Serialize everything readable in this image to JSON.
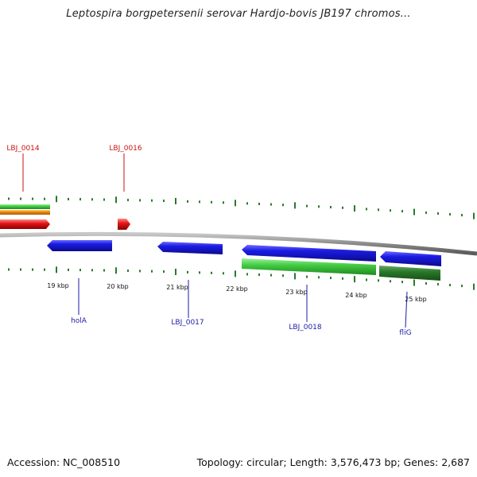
{
  "title": "Leptospira borgpetersenii serovar Hardjo-bovis JB197 chromos...",
  "footer": {
    "accession": "Accession: NC_008510",
    "summary": "Topology: circular; Length: 3,576,473 bp; Genes: 2,687"
  },
  "colors": {
    "label_red": "#c81414",
    "label_blue": "#1a1aa8",
    "tick_green": "#2a7a2a",
    "backbone": "#8a8a8a",
    "blue": "#1a1ad8",
    "green": "#44cc44",
    "dark_green": "#2b7a2b",
    "orange": "#f08c14",
    "red": "#e61818"
  },
  "axis": {
    "kbp_labels": [
      "19 kbp",
      "20 kbp",
      "21 kbp",
      "22 kbp",
      "23 kbp",
      "24 kbp",
      "25 kbp"
    ]
  },
  "gene_labels": {
    "top": [
      "LBJ_0014",
      "LBJ_0016"
    ],
    "bottom": [
      "holA",
      "LBJ_0017",
      "LBJ_0018",
      "fliG"
    ]
  },
  "features": {
    "strand_above": [
      "red",
      "green",
      "orange",
      "red",
      "red"
    ],
    "strand_below": [
      "blue",
      "blue",
      "blue",
      "green",
      "blue",
      "dark_green"
    ]
  }
}
